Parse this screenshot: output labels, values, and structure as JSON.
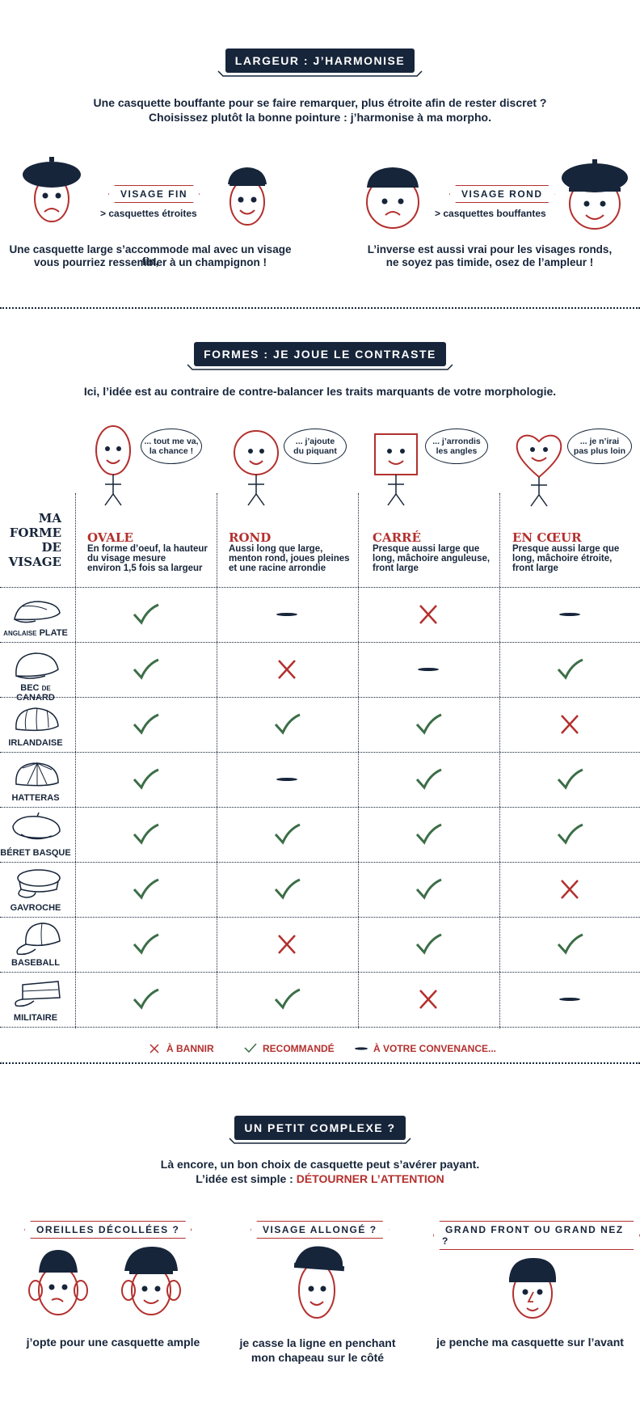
{
  "colors": {
    "navy": "#17253a",
    "red": "#b3302e",
    "green": "#3c6e47"
  },
  "section1": {
    "title": "LARGEUR : J’HARMONISE",
    "intro_line1": "Une casquette bouffante pour se faire remarquer, plus étroite afin de rester discret ?",
    "intro_line2": "Choisissez plutôt la bonne pointure : j’harmonise à ma morpho.",
    "left": {
      "tag": "VISAGE FIN",
      "sub": "> casquettes étroites",
      "text_line1": "Une casquette large s’accommode mal avec un visage fin,",
      "text_line2": "vous pourriez ressembler à un champignon !"
    },
    "right": {
      "tag": "VISAGE ROND",
      "sub": "> casquettes bouffantes",
      "text_line1": "L’inverse est aussi vrai pour les visages ronds,",
      "text_line2": "ne soyez pas timide, osez de l’ampleur !"
    }
  },
  "section2": {
    "title": "FORMES : JE JOUE LE CONTRASTE",
    "intro": "Ici, l’idée est au contraire de contre-balancer les traits marquants de votre morphologie.",
    "row_header": [
      "MA",
      "FORME",
      "DE",
      "VISAGE"
    ],
    "shapes": [
      {
        "bubble_l1": "... tout me va,",
        "bubble_l2": "la chance !",
        "name": "OVALE",
        "desc": [
          "En forme d’oeuf, la hauteur",
          "du visage mesure",
          "environ 1,5 fois sa largeur"
        ]
      },
      {
        "bubble_l1": "... j’ajoute",
        "bubble_l2": "du piquant",
        "name": "ROND",
        "desc": [
          "Aussi long que large,",
          "menton rond, joues pleines",
          "et une racine arrondie"
        ]
      },
      {
        "bubble_l1": "... j’arrondis",
        "bubble_l2": "les angles",
        "name": "CARRÉ",
        "desc": [
          "Presque aussi large que",
          "long, mâchoire anguleuse,",
          "front large"
        ]
      },
      {
        "bubble_l1": "... je n’irai",
        "bubble_l2": "pas plus loin",
        "name": "EN CŒUR",
        "desc": [
          "Presque aussi large que",
          "long, mâchoire étroite,",
          "front large"
        ]
      }
    ],
    "hats": [
      {
        "label_small": "ANGLAISE",
        "label": "PLATE",
        "marks": [
          "check",
          "dash",
          "cross",
          "dash"
        ]
      },
      {
        "label": "BEC",
        "label_small": "DE",
        "label2": "CANARD",
        "marks": [
          "check",
          "cross",
          "dash",
          "check"
        ]
      },
      {
        "label": "IRLANDAISE",
        "marks": [
          "check",
          "check",
          "check",
          "cross"
        ]
      },
      {
        "label": "HATTERAS",
        "marks": [
          "check",
          "dash",
          "check",
          "check"
        ]
      },
      {
        "label": "BÉRET BASQUE",
        "marks": [
          "check",
          "check",
          "check",
          "check"
        ]
      },
      {
        "label": "GAVROCHE",
        "marks": [
          "check",
          "check",
          "check",
          "cross"
        ]
      },
      {
        "label": "BASEBALL",
        "marks": [
          "check",
          "cross",
          "check",
          "check"
        ]
      },
      {
        "label": "MILITAIRE",
        "marks": [
          "check",
          "check",
          "cross",
          "dash"
        ]
      }
    ],
    "legend": {
      "ban": "À BANNIR",
      "rec": "RECOMMANDÉ",
      "free": "À VOTRE CONVENANCE..."
    }
  },
  "section3": {
    "title": "UN PETIT COMPLEXE ?",
    "intro_line1": "Là encore, un bon choix de casquette peut s’avérer payant.",
    "intro_line2_a": "L’idée est simple : ",
    "intro_line2_b": "DÉTOURNER L’ATTENTION",
    "items": [
      {
        "tag": "OREILLES DÉCOLLÉES ?",
        "text_l1": "j’opte pour une casquette ample",
        "text_l2": ""
      },
      {
        "tag": "VISAGE ALLONGÉ ?",
        "text_l1": "je casse la ligne en penchant",
        "text_l2": "mon chapeau sur le côté"
      },
      {
        "tag": "GRAND FRONT OU GRAND NEZ ?",
        "text_l1": "je penche ma casquette sur l’avant",
        "text_l2": ""
      }
    ]
  }
}
